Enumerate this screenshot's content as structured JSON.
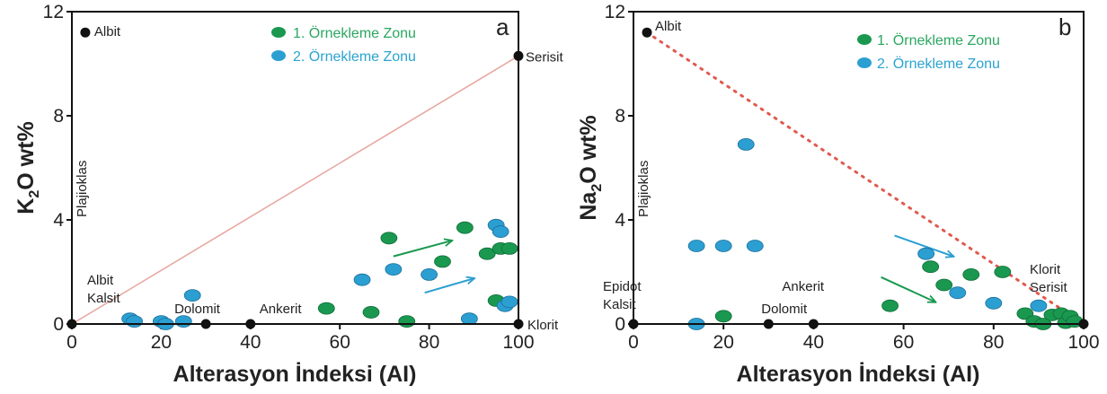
{
  "figure": {
    "xlabel": "Alterasyon İndeksi (AI)",
    "x_ticks": [
      "0",
      "20",
      "40",
      "60",
      "80",
      "100"
    ],
    "y_ticks": [
      "0",
      "4",
      "8",
      "12"
    ],
    "legend": [
      "1. Örnekleme Zonu",
      "2. Örnekleme Zonu"
    ],
    "colors": {
      "zone1": "#1a9850",
      "zone2": "#2b9fd2",
      "zone1_text": "#2aa760",
      "zone2_text": "#2aa3cf",
      "endmember": "#111111"
    }
  },
  "chart_data": [
    {
      "type": "scatter",
      "panel": "a",
      "ylabel_main": "K",
      "ylabel_sub": "2",
      "ylabel_rest": "O wt%",
      "xlim": [
        0,
        100
      ],
      "ylim": [
        0,
        12
      ],
      "reference_line": {
        "from": [
          0,
          0
        ],
        "to": [
          100,
          10.3
        ],
        "style": "solid",
        "color": "#e8a8a0"
      },
      "endmembers": [
        {
          "label": "Albit",
          "x": 3,
          "y": 11.2
        },
        {
          "label": "Serisit",
          "x": 100,
          "y": 10.3
        },
        {
          "label": "Dolomit",
          "x": 30,
          "y": 0
        },
        {
          "label": "Ankerit",
          "x": 40,
          "y": 0
        },
        {
          "label": "Klorit",
          "x": 100,
          "y": 0
        },
        {
          "label": "",
          "x": 0,
          "y": 0
        }
      ],
      "labels": {
        "plajioklas": "Plajioklas",
        "albit_kalsit_1": "Albit",
        "albit_kalsit_2": "Kalsit"
      },
      "series": [
        {
          "name": "1. Örnekleme Zonu",
          "x": [
            57,
            67,
            71,
            75,
            83,
            88,
            93,
            95,
            96,
            98
          ],
          "y": [
            0.6,
            0.45,
            3.3,
            0.1,
            2.4,
            3.7,
            2.7,
            0.9,
            2.9,
            2.9
          ]
        },
        {
          "name": "2. Örnekleme Zonu",
          "x": [
            13,
            14,
            20,
            21,
            25,
            27,
            65,
            72,
            80,
            89,
            95,
            96,
            97,
            98
          ],
          "y": [
            0.2,
            0.1,
            0.1,
            0.0,
            0.1,
            1.1,
            1.7,
            2.1,
            1.9,
            0.2,
            3.8,
            3.55,
            0.7,
            0.85
          ]
        }
      ],
      "arrows": [
        {
          "color": "zone1",
          "from": [
            72,
            2.6
          ],
          "to": [
            85,
            3.2
          ]
        },
        {
          "color": "zone2",
          "from": [
            79,
            1.2
          ],
          "to": [
            90,
            1.75
          ]
        }
      ]
    },
    {
      "type": "scatter",
      "panel": "b",
      "ylabel_main": "Na",
      "ylabel_sub": "2",
      "ylabel_rest": "O wt%",
      "xlim": [
        0,
        100
      ],
      "ylim": [
        0,
        12
      ],
      "reference_line": {
        "from": [
          3,
          11.2
        ],
        "to": [
          100,
          0
        ],
        "style": "dotted",
        "color": "#e05a4e"
      },
      "endmembers": [
        {
          "label": "Albit",
          "x": 3,
          "y": 11.2
        },
        {
          "label": "Dolomit",
          "x": 30,
          "y": 0
        },
        {
          "label": "Ankerit",
          "x": 40,
          "y": 0
        },
        {
          "label": "",
          "x": 0,
          "y": 0
        },
        {
          "label": "",
          "x": 100,
          "y": 0
        }
      ],
      "labels": {
        "plajioklas": "Plajioklas",
        "epidot_1": "Epidot",
        "epidot_2": "Kalsit",
        "klorit_1": "Klorit",
        "klorit_2": "Serisit"
      },
      "series": [
        {
          "name": "1. Örnekleme Zonu",
          "x": [
            20,
            57,
            66,
            69,
            75,
            82,
            87,
            89,
            91,
            93,
            95,
            96,
            97,
            98
          ],
          "y": [
            0.3,
            0.7,
            2.2,
            1.5,
            1.9,
            2.0,
            0.4,
            0.1,
            0.0,
            0.35,
            0.4,
            0.05,
            0.3,
            0.1
          ]
        },
        {
          "name": "2. Örnekleme Zonu",
          "x": [
            14,
            14,
            20,
            25,
            27,
            65,
            72,
            80,
            90
          ],
          "y": [
            3.0,
            0.0,
            3.0,
            6.9,
            3.0,
            2.7,
            1.2,
            0.8,
            0.7
          ]
        }
      ],
      "arrows": [
        {
          "color": "zone2",
          "from": [
            58,
            3.4
          ],
          "to": [
            71,
            2.6
          ]
        },
        {
          "color": "zone1",
          "from": [
            55,
            1.8
          ],
          "to": [
            67,
            0.85
          ]
        }
      ]
    }
  ]
}
